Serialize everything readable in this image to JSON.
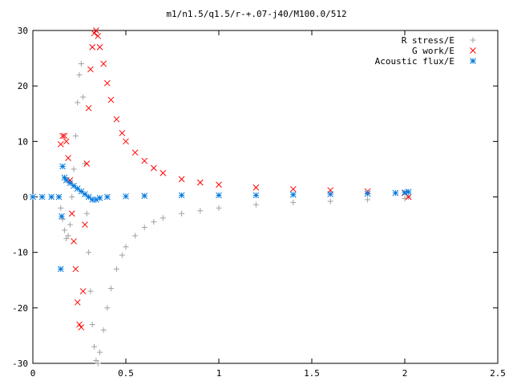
{
  "chart_data": {
    "type": "scatter",
    "title": "m1/n1.5/q1.5/r-+.07-j40/M100.0/512",
    "xlabel": "",
    "ylabel": "",
    "xlim": [
      0,
      2.5
    ],
    "ylim": [
      -30,
      30
    ],
    "grid": false,
    "legend": "top-right",
    "x_ticks": [
      "0",
      "0.5",
      "1",
      "1.5",
      "2",
      "2.5"
    ],
    "y_ticks": [
      "-30",
      "-20",
      "-10",
      "0",
      "10",
      "20",
      "30"
    ],
    "x_tick_values": [
      0,
      0.5,
      1,
      1.5,
      2,
      2.5
    ],
    "y_tick_values": [
      -30,
      -20,
      -10,
      0,
      10,
      20,
      30
    ],
    "series": [
      {
        "name": "R stress/E",
        "marker": "plus",
        "color": "#a0a0a0",
        "points": [
          [
            0.15,
            -2
          ],
          [
            0.16,
            -4
          ],
          [
            0.17,
            -6
          ],
          [
            0.18,
            -7.5
          ],
          [
            0.19,
            -7
          ],
          [
            0.2,
            -5
          ],
          [
            0.21,
            0
          ],
          [
            0.22,
            5
          ],
          [
            0.23,
            11
          ],
          [
            0.24,
            17
          ],
          [
            0.25,
            22
          ],
          [
            0.26,
            24
          ],
          [
            0.27,
            18
          ],
          [
            0.28,
            6
          ],
          [
            0.29,
            -3
          ],
          [
            0.3,
            -10
          ],
          [
            0.31,
            -17
          ],
          [
            0.32,
            -23
          ],
          [
            0.33,
            -27
          ],
          [
            0.34,
            -29.5
          ],
          [
            0.35,
            -30
          ],
          [
            0.36,
            -28
          ],
          [
            0.38,
            -24
          ],
          [
            0.4,
            -20
          ],
          [
            0.42,
            -16.5
          ],
          [
            0.45,
            -13
          ],
          [
            0.48,
            -10.5
          ],
          [
            0.5,
            -9
          ],
          [
            0.55,
            -7
          ],
          [
            0.6,
            -5.5
          ],
          [
            0.65,
            -4.5
          ],
          [
            0.7,
            -3.8
          ],
          [
            0.8,
            -3
          ],
          [
            0.9,
            -2.5
          ],
          [
            1.0,
            -2
          ],
          [
            1.2,
            -1.4
          ],
          [
            1.4,
            -1
          ],
          [
            1.6,
            -0.8
          ],
          [
            1.8,
            -0.5
          ],
          [
            2.0,
            -0.3
          ],
          [
            2.02,
            0
          ]
        ]
      },
      {
        "name": "G work/E",
        "marker": "cross",
        "color": "#ff0000",
        "points": [
          [
            0.15,
            9.5
          ],
          [
            0.16,
            11
          ],
          [
            0.17,
            11
          ],
          [
            0.18,
            10
          ],
          [
            0.19,
            7
          ],
          [
            0.2,
            3
          ],
          [
            0.21,
            -3
          ],
          [
            0.22,
            -8
          ],
          [
            0.23,
            -13
          ],
          [
            0.24,
            -19
          ],
          [
            0.25,
            -23
          ],
          [
            0.26,
            -23.5
          ],
          [
            0.27,
            -17
          ],
          [
            0.28,
            -5
          ],
          [
            0.29,
            6
          ],
          [
            0.3,
            16
          ],
          [
            0.31,
            23
          ],
          [
            0.32,
            27
          ],
          [
            0.33,
            29.5
          ],
          [
            0.34,
            30
          ],
          [
            0.35,
            29
          ],
          [
            0.36,
            27
          ],
          [
            0.38,
            24
          ],
          [
            0.4,
            20.5
          ],
          [
            0.42,
            17.5
          ],
          [
            0.45,
            14
          ],
          [
            0.48,
            11.5
          ],
          [
            0.5,
            10
          ],
          [
            0.55,
            8
          ],
          [
            0.6,
            6.5
          ],
          [
            0.65,
            5.2
          ],
          [
            0.7,
            4.3
          ],
          [
            0.8,
            3.2
          ],
          [
            0.9,
            2.6
          ],
          [
            1.0,
            2.2
          ],
          [
            1.2,
            1.7
          ],
          [
            1.4,
            1.4
          ],
          [
            1.6,
            1.2
          ],
          [
            1.8,
            1.0
          ],
          [
            2.0,
            0.7
          ],
          [
            2.02,
            0
          ]
        ]
      },
      {
        "name": "Acoustic flux/E",
        "marker": "star",
        "color": "#0078dc",
        "points": [
          [
            0,
            0
          ],
          [
            0.05,
            0
          ],
          [
            0.1,
            0
          ],
          [
            0.14,
            0
          ],
          [
            0.15,
            -13
          ],
          [
            0.155,
            -3.5
          ],
          [
            0.16,
            5.5
          ],
          [
            0.17,
            3.5
          ],
          [
            0.18,
            3
          ],
          [
            0.2,
            2.5
          ],
          [
            0.22,
            2
          ],
          [
            0.24,
            1.5
          ],
          [
            0.26,
            1
          ],
          [
            0.28,
            0.5
          ],
          [
            0.3,
            0
          ],
          [
            0.32,
            -0.5
          ],
          [
            0.34,
            -0.5
          ],
          [
            0.36,
            -0.2
          ],
          [
            0.4,
            0
          ],
          [
            0.5,
            0.1
          ],
          [
            0.6,
            0.2
          ],
          [
            0.8,
            0.3
          ],
          [
            1.0,
            0.3
          ],
          [
            1.2,
            0.3
          ],
          [
            1.4,
            0.4
          ],
          [
            1.6,
            0.5
          ],
          [
            1.8,
            0.6
          ],
          [
            1.95,
            0.7
          ],
          [
            2.0,
            0.8
          ],
          [
            2.02,
            0.9
          ]
        ]
      }
    ]
  }
}
